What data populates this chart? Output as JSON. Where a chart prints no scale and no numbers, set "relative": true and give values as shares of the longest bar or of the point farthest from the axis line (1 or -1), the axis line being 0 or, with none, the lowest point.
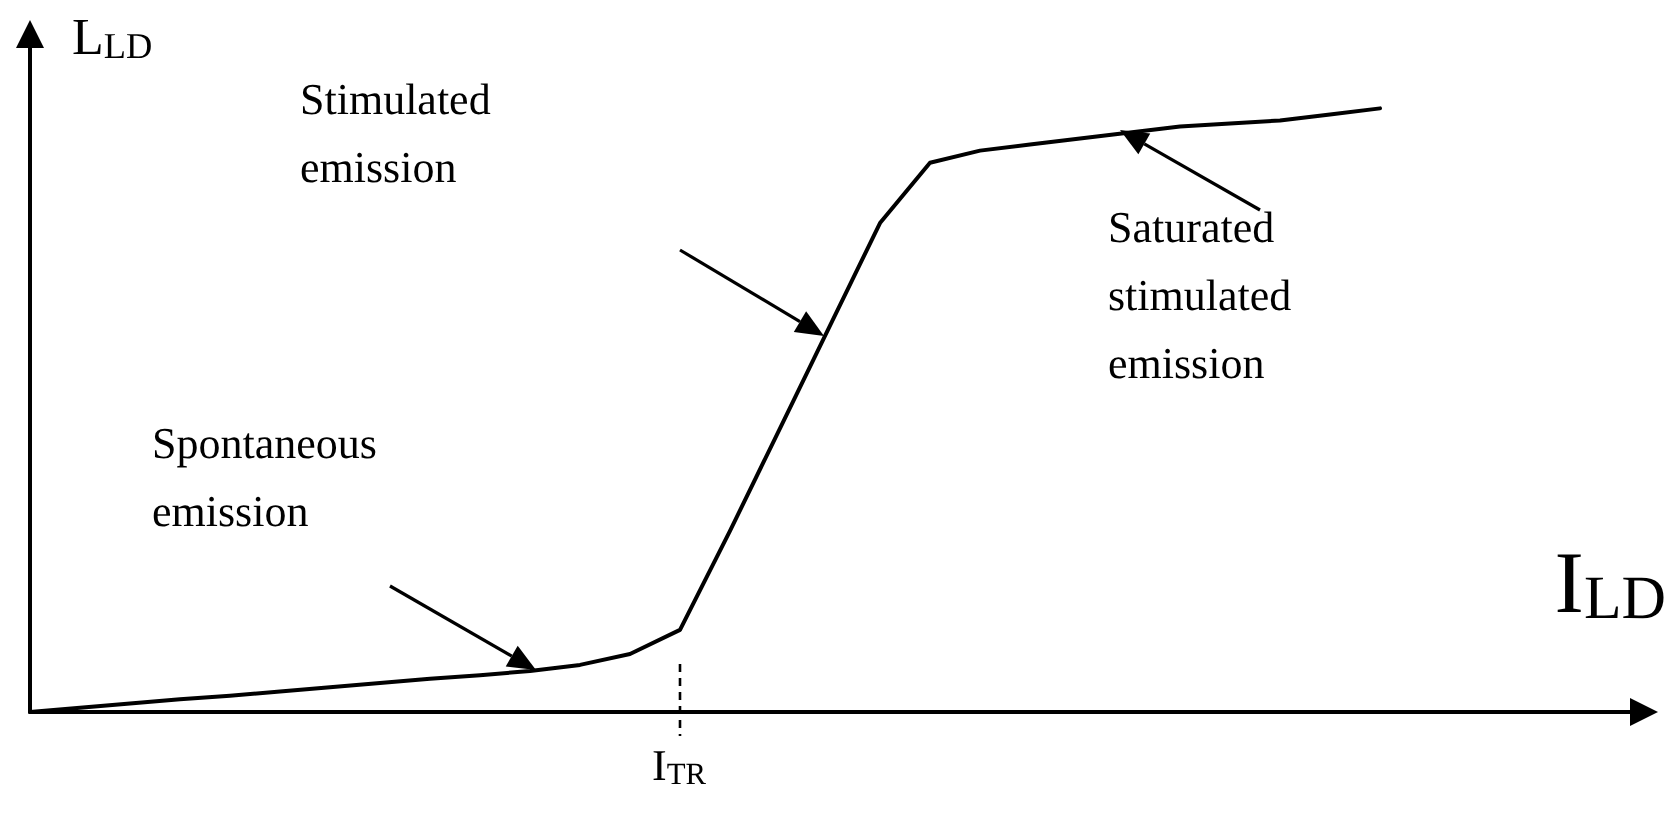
{
  "chart_data": {
    "type": "line",
    "relative": true,
    "xlabel": "I$_{LD}$",
    "ylabel": "L$_{LD}$",
    "categories": [
      null,
      null,
      null,
      null,
      null,
      null,
      null,
      null,
      null,
      null,
      null,
      null,
      null,
      null,
      null,
      null,
      null,
      null,
      null,
      null,
      null,
      null,
      null,
      null,
      null,
      null,
      null,
      null,
      null,
      null,
      null,
      null,
      null
    ],
    "series": [
      {
        "color": "#000000",
        "values": [
          0,
          0.007,
          0.014,
          0.021,
          0.027,
          0.034,
          0.041,
          0.048,
          0.055,
          0.061,
          0.068,
          0.078,
          0.096,
          0.136,
          0.3,
          0.47,
          0.64,
          0.81,
          0.91,
          0.93,
          0.94,
          0.95,
          0.96,
          0.97,
          0.975,
          0.98,
          0.99,
          1,
          null,
          null,
          null,
          null,
          null
        ]
      }
    ],
    "annotations": [
      "Stimulated emission",
      "Spontaneous emission",
      "Saturated stimulated emission",
      "I$_{TR}$"
    ],
    "marker": "none",
    "grid": false
  }
}
